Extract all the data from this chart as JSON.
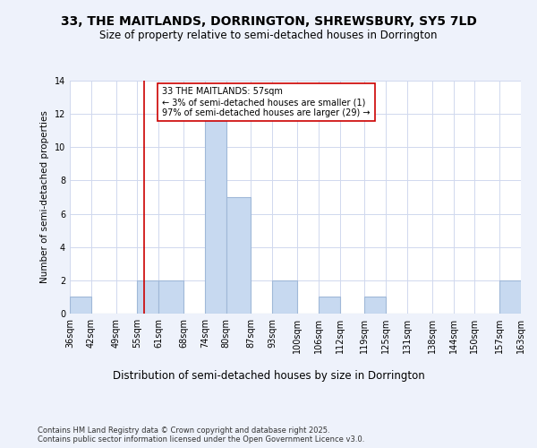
{
  "title1": "33, THE MAITLANDS, DORRINGTON, SHREWSBURY, SY5 7LD",
  "title2": "Size of property relative to semi-detached houses in Dorrington",
  "xlabel": "Distribution of semi-detached houses by size in Dorrington",
  "ylabel": "Number of semi-detached properties",
  "bin_edges": [
    36,
    42,
    49,
    55,
    61,
    68,
    74,
    80,
    87,
    93,
    100,
    106,
    112,
    119,
    125,
    131,
    138,
    144,
    150,
    157,
    163
  ],
  "bar_heights": [
    1,
    0,
    0,
    2,
    2,
    0,
    12,
    7,
    0,
    2,
    0,
    1,
    0,
    1,
    0,
    0,
    0,
    0,
    0,
    2
  ],
  "bar_color": "#c7d9f0",
  "bar_edgecolor": "#a0b8d8",
  "bar_linewidth": 0.8,
  "red_line_x": 57,
  "red_line_color": "#cc0000",
  "annotation_text": "33 THE MAITLANDS: 57sqm\n← 3% of semi-detached houses are smaller (1)\n97% of semi-detached houses are larger (29) →",
  "ylim": [
    0,
    14
  ],
  "yticks": [
    0,
    2,
    4,
    6,
    8,
    10,
    12,
    14
  ],
  "background_color": "#eef2fb",
  "plot_bg_color": "#ffffff",
  "footer": "Contains HM Land Registry data © Crown copyright and database right 2025.\nContains public sector information licensed under the Open Government Licence v3.0.",
  "title1_fontsize": 10,
  "title2_fontsize": 8.5,
  "xlabel_fontsize": 8.5,
  "ylabel_fontsize": 7.5,
  "tick_fontsize": 7,
  "annotation_fontsize": 7,
  "footer_fontsize": 6
}
